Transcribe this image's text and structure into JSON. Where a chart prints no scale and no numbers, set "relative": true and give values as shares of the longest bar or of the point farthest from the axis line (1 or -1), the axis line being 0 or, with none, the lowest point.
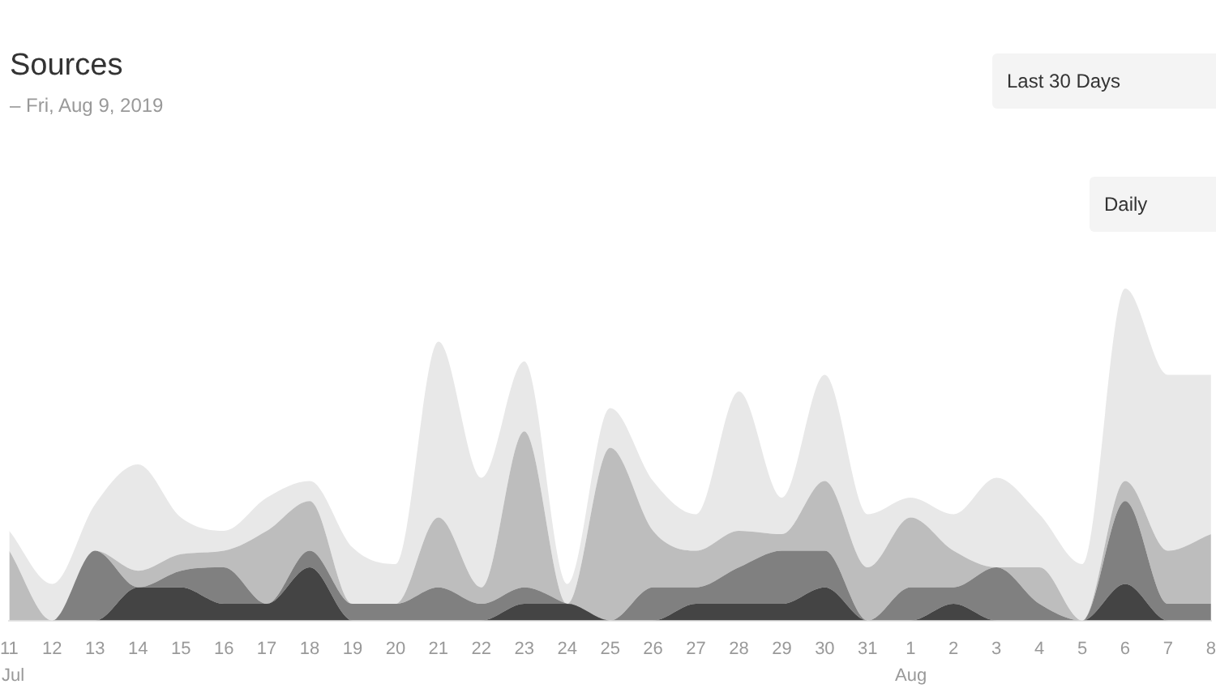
{
  "chart_data": {
    "type": "area",
    "title": "Sources",
    "subtitle": "– Fri, Aug 9, 2019",
    "relative": true,
    "stacked": true,
    "categories": [
      "11",
      "12",
      "13",
      "14",
      "15",
      "16",
      "17",
      "18",
      "19",
      "20",
      "21",
      "22",
      "23",
      "24",
      "25",
      "26",
      "27",
      "28",
      "29",
      "30",
      "31",
      "1",
      "2",
      "3",
      "4",
      "5",
      "6",
      "7",
      "8"
    ],
    "series": [
      {
        "color": "#444444",
        "values": [
          0,
          0,
          0,
          0.1,
          0.1,
          0.05,
          0.05,
          0.16,
          0,
          0,
          0,
          0,
          0.05,
          0.05,
          0,
          0,
          0.05,
          0.05,
          0.05,
          0.1,
          0,
          0,
          0.05,
          0,
          0,
          0,
          0.11,
          0,
          0
        ]
      },
      {
        "color": "#808080",
        "values": [
          0,
          0,
          0.21,
          0,
          0.05,
          0.11,
          0,
          0.05,
          0.05,
          0.05,
          0.1,
          0.05,
          0.05,
          0,
          0,
          0.1,
          0.05,
          0.11,
          0.16,
          0.11,
          0,
          0.1,
          0.05,
          0.16,
          0.05,
          0,
          0.25,
          0.05,
          0.05
        ]
      },
      {
        "color": "#bdbdbd",
        "values": [
          0.21,
          0,
          0,
          0.05,
          0.05,
          0.05,
          0.22,
          0.15,
          0,
          0,
          0.21,
          0.05,
          0.47,
          0,
          0.52,
          0.17,
          0.11,
          0.11,
          0.05,
          0.21,
          0.16,
          0.21,
          0.11,
          0,
          0.11,
          0,
          0.06,
          0.16,
          0.21
        ]
      },
      {
        "color": "#e8e8e8",
        "values": [
          0.06,
          0.11,
          0.14,
          0.32,
          0.11,
          0.06,
          0.1,
          0.06,
          0.17,
          0.12,
          0.53,
          0.33,
          0.21,
          0.06,
          0.12,
          0.15,
          0.11,
          0.42,
          0.11,
          0.32,
          0.16,
          0.06,
          0.11,
          0.27,
          0.16,
          0.17,
          0.58,
          0.53,
          0.48
        ]
      }
    ],
    "annotations": [
      "Last 30 Days",
      "Daily",
      "Jul",
      "Aug"
    ]
  }
}
